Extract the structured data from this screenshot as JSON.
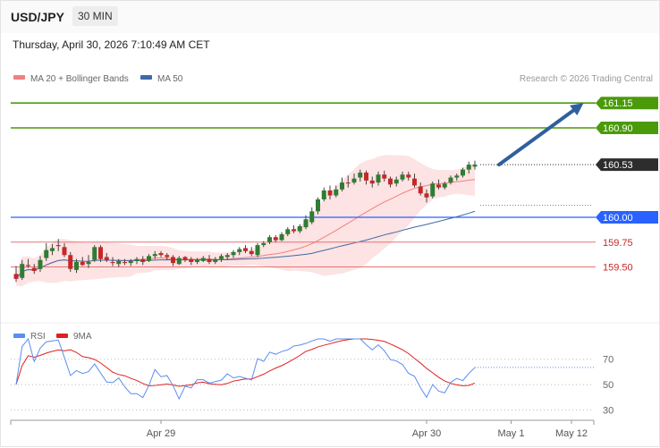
{
  "header": {
    "symbol": "USD/JPY",
    "interval": "30 MIN",
    "datetime": "Thursday, April 30, 2026 7:10:49 AM CET"
  },
  "legend": {
    "ma20": "MA 20 + Bollinger Bands",
    "ma50": "MA 50",
    "source": "Research © 2026 Trading Central",
    "rsi": "RSI",
    "rsi_ma": "9MA"
  },
  "colors": {
    "up": "#2e7d32",
    "down": "#c62828",
    "target": "#4a9a0a",
    "pivot": "#2962ff",
    "support": "#e57373",
    "current": "#2d2d2d",
    "arrow": "#2f5f9e",
    "ma50": "#3e6aa8",
    "band": "#fde3e3",
    "rsi": "#5b8def",
    "rsi_ma": "#e02020"
  },
  "chart_data": [
    {
      "type": "candlestick",
      "x_ticks": [
        {
          "label": "Apr 29",
          "index": 24
        },
        {
          "label": "Apr 30",
          "index": 68
        },
        {
          "label": "May 1",
          "index": 82
        },
        {
          "label": "May 12",
          "index": 92
        }
      ],
      "ylim": [
        159.1,
        161.35
      ],
      "levels": [
        {
          "value": 161.15,
          "label": "161.15",
          "role": "target"
        },
        {
          "value": 160.9,
          "label": "160.90",
          "role": "target"
        },
        {
          "value": 160.53,
          "label": "160.53",
          "role": "current"
        },
        {
          "value": 160.0,
          "label": "160.00",
          "role": "pivot"
        },
        {
          "value": 159.75,
          "label": "159.75",
          "role": "support"
        },
        {
          "value": 159.5,
          "label": "159.50",
          "role": "support"
        }
      ],
      "forecast_arrow": {
        "from": [
          80,
          160.53
        ],
        "to": [
          94,
          161.15
        ]
      },
      "candles": [
        [
          159.43,
          159.51,
          159.35,
          159.38
        ],
        [
          159.39,
          159.57,
          159.37,
          159.53
        ],
        [
          159.52,
          159.58,
          159.49,
          159.51
        ],
        [
          159.49,
          159.53,
          159.43,
          159.46
        ],
        [
          159.48,
          159.61,
          159.45,
          159.57
        ],
        [
          159.59,
          159.74,
          159.56,
          159.67
        ],
        [
          159.66,
          159.73,
          159.62,
          159.69
        ],
        [
          159.72,
          159.78,
          159.66,
          159.71
        ],
        [
          159.7,
          159.74,
          159.6,
          159.62
        ],
        [
          159.62,
          159.65,
          159.45,
          159.48
        ],
        [
          159.47,
          159.58,
          159.44,
          159.55
        ],
        [
          159.55,
          159.6,
          159.51,
          159.52
        ],
        [
          159.53,
          159.62,
          159.49,
          159.55
        ],
        [
          159.57,
          159.72,
          159.55,
          159.7
        ],
        [
          159.7,
          159.72,
          159.55,
          159.58
        ],
        [
          159.6,
          159.64,
          159.55,
          159.57
        ],
        [
          159.55,
          159.6,
          159.51,
          159.54
        ],
        [
          159.53,
          159.58,
          159.5,
          159.56
        ],
        [
          159.55,
          159.58,
          159.52,
          159.54
        ],
        [
          159.54,
          159.58,
          159.51,
          159.56
        ],
        [
          159.56,
          159.6,
          159.53,
          159.58
        ],
        [
          159.58,
          159.61,
          159.52,
          159.55
        ],
        [
          159.56,
          159.63,
          159.55,
          159.61
        ],
        [
          159.61,
          159.66,
          159.58,
          159.63
        ],
        [
          159.64,
          159.66,
          159.6,
          159.62
        ],
        [
          159.62,
          159.64,
          159.57,
          159.6
        ],
        [
          159.6,
          159.62,
          159.51,
          159.54
        ],
        [
          159.53,
          159.61,
          159.52,
          159.59
        ],
        [
          159.6,
          159.61,
          159.55,
          159.57
        ],
        [
          159.58,
          159.6,
          159.52,
          159.55
        ],
        [
          159.55,
          159.59,
          159.53,
          159.57
        ],
        [
          159.56,
          159.61,
          159.55,
          159.59
        ],
        [
          159.58,
          159.62,
          159.53,
          159.55
        ],
        [
          159.55,
          159.6,
          159.53,
          159.58
        ],
        [
          159.58,
          159.63,
          159.55,
          159.61
        ],
        [
          159.6,
          159.64,
          159.57,
          159.62
        ],
        [
          159.62,
          159.67,
          159.59,
          159.65
        ],
        [
          159.65,
          159.7,
          159.62,
          159.68
        ],
        [
          159.69,
          159.72,
          159.64,
          159.66
        ],
        [
          159.66,
          159.7,
          159.61,
          159.63
        ],
        [
          159.62,
          159.74,
          159.6,
          159.72
        ],
        [
          159.72,
          159.76,
          159.7,
          159.74
        ],
        [
          159.75,
          159.82,
          159.73,
          159.8
        ],
        [
          159.8,
          159.82,
          159.75,
          159.77
        ],
        [
          159.77,
          159.85,
          159.76,
          159.83
        ],
        [
          159.83,
          159.9,
          159.81,
          159.88
        ],
        [
          159.88,
          159.92,
          159.84,
          159.86
        ],
        [
          159.86,
          159.93,
          159.84,
          159.91
        ],
        [
          159.9,
          160.02,
          159.88,
          159.98
        ],
        [
          159.95,
          160.1,
          159.93,
          160.06
        ],
        [
          160.06,
          160.2,
          160.03,
          160.18
        ],
        [
          160.18,
          160.3,
          160.16,
          160.27
        ],
        [
          160.27,
          160.32,
          160.18,
          160.22
        ],
        [
          160.22,
          160.32,
          160.2,
          160.28
        ],
        [
          160.28,
          160.4,
          160.26,
          160.35
        ],
        [
          160.35,
          160.42,
          160.3,
          160.34
        ],
        [
          160.35,
          160.44,
          160.33,
          160.39
        ],
        [
          160.4,
          160.48,
          160.36,
          160.45
        ],
        [
          160.45,
          160.47,
          160.33,
          160.37
        ],
        [
          160.37,
          160.41,
          160.3,
          160.34
        ],
        [
          160.35,
          160.46,
          160.32,
          160.43
        ],
        [
          160.43,
          160.47,
          160.36,
          160.39
        ],
        [
          160.39,
          160.41,
          160.3,
          160.33
        ],
        [
          160.34,
          160.41,
          160.31,
          160.38
        ],
        [
          160.38,
          160.46,
          160.36,
          160.43
        ],
        [
          160.43,
          160.46,
          160.37,
          160.4
        ],
        [
          160.39,
          160.44,
          160.3,
          160.32
        ],
        [
          160.31,
          160.35,
          160.22,
          160.24
        ],
        [
          160.24,
          160.28,
          160.15,
          160.2
        ],
        [
          160.21,
          160.36,
          160.19,
          160.34
        ],
        [
          160.33,
          160.38,
          160.28,
          160.3
        ],
        [
          160.3,
          160.36,
          160.28,
          160.34
        ],
        [
          160.35,
          160.42,
          160.33,
          160.4
        ],
        [
          160.4,
          160.44,
          160.37,
          160.42
        ],
        [
          160.42,
          160.5,
          160.4,
          160.48
        ],
        [
          160.48,
          160.56,
          160.44,
          160.53
        ],
        [
          160.51,
          160.57,
          160.48,
          160.53
        ]
      ]
    },
    {
      "type": "line",
      "series": [
        {
          "name": "RSI"
        },
        {
          "name": "9MA"
        }
      ],
      "y_ticks": [
        70,
        50,
        30
      ],
      "ylim": [
        24,
        86
      ]
    }
  ]
}
